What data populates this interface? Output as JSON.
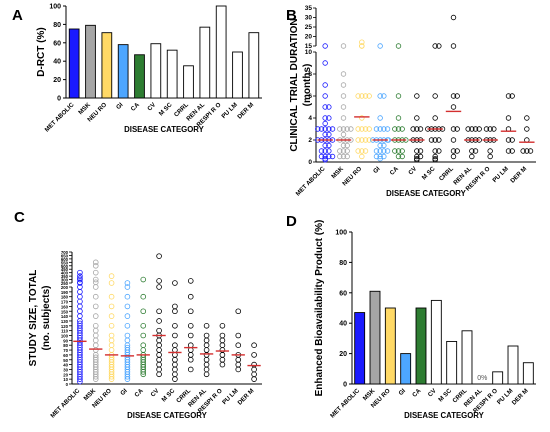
{
  "colors": {
    "metabolic": "#1a1aff",
    "msk": "#a6a6a6",
    "neuro": "#ffd966",
    "gi": "#4da6ff",
    "ca": "#2e7d32",
    "open": "#ffffff",
    "axis": "#000000",
    "median": "#d32f2f"
  },
  "chart_data": [
    {
      "id": "A",
      "panel_label": "A",
      "type": "bar",
      "categories": [
        "MET ABOLIC",
        "MSK",
        "NEU RO",
        "GI",
        "CA",
        "CV",
        "M SC",
        "CRRL",
        "REN AL",
        "RESPI R O",
        "PU LM",
        "DER M"
      ],
      "values": [
        75,
        79,
        71,
        58,
        47,
        59,
        52,
        35,
        77,
        100,
        50,
        71
      ],
      "fill_keys": [
        "metabolic",
        "msk",
        "neuro",
        "gi",
        "ca",
        "open",
        "open",
        "open",
        "open",
        "open",
        "open",
        "open"
      ],
      "ylabel": "D-RCT (%)",
      "xlabel": "DISEASE CATEGORY",
      "ylim": [
        0,
        100
      ],
      "yticks": [
        "0",
        "20",
        "40",
        "60",
        "80",
        "100"
      ],
      "grid": false
    },
    {
      "id": "B",
      "panel_label": "B",
      "type": "scatter",
      "categories": [
        "MET ABOLIC",
        "MSK",
        "NEU RO",
        "GI",
        "CA",
        "CV",
        "M SC",
        "CRRL",
        "REN AL",
        "RESPI R O",
        "PU LM",
        "DER M"
      ],
      "ylabel_lines": [
        "CLINICAL TRIAL DURATION",
        "(months)"
      ],
      "xlabel": "DISEASE CATEGORY",
      "ylim": [
        0,
        34
      ],
      "broken_axis": true,
      "yticks_lower": [
        "0",
        "2",
        "4",
        "6",
        "8",
        "10"
      ],
      "yticks_upper": [
        "15",
        "20",
        "25",
        "30",
        "35"
      ],
      "point_colors": [
        "metabolic",
        "msk",
        "neuro",
        "gi",
        "ca",
        "axis",
        "axis",
        "axis",
        "axis",
        "axis",
        "axis",
        "axis"
      ],
      "medians": [
        2.0,
        2.0,
        4.1,
        2.0,
        2.0,
        2.0,
        3.0,
        4.6,
        2.0,
        2.0,
        2.8,
        1.8
      ],
      "points": [
        [
          12,
          9,
          7,
          6,
          5,
          5,
          4,
          4,
          3.5,
          3,
          3,
          3,
          3,
          3,
          2.5,
          2.5,
          2,
          2,
          2,
          2,
          2,
          1.5,
          1.5,
          1,
          1,
          1,
          0.5,
          0.5,
          0.5,
          0.5,
          0.3,
          0.2
        ],
        [
          12,
          8,
          7,
          6,
          5,
          4,
          3,
          3,
          3,
          3,
          2.5,
          2,
          2,
          2,
          2,
          1.5,
          1.5,
          1,
          1,
          1,
          0.5,
          0.5,
          0.5
        ],
        [
          17,
          15,
          12,
          6,
          6,
          6,
          6,
          4,
          3,
          3,
          3,
          3,
          2,
          2,
          2,
          2,
          1,
          1,
          1,
          0.5
        ],
        [
          12,
          6,
          6,
          4,
          3,
          3,
          3,
          3,
          2,
          2,
          2,
          2,
          2,
          2,
          1.5,
          1.5,
          1,
          1,
          1,
          1,
          0.5,
          0.5,
          0.5,
          0.3
        ],
        [
          12,
          6,
          4,
          3,
          3,
          3,
          2,
          2,
          2,
          2,
          1,
          1,
          1,
          0.5,
          0.5
        ],
        [
          6,
          4,
          3,
          3,
          3,
          2,
          2,
          2,
          1,
          1,
          0.5,
          0.5,
          0.3,
          0.2
        ],
        [
          12,
          12,
          6,
          4,
          3,
          3,
          3,
          3,
          3,
          2,
          2,
          2,
          1,
          1,
          0.5,
          0.3,
          0.2
        ],
        [
          30,
          12,
          6,
          6,
          5,
          3,
          3,
          2,
          1,
          1,
          0.5
        ],
        [
          3,
          3,
          3,
          3,
          2,
          2,
          2,
          2,
          1,
          1,
          0.5
        ],
        [
          3,
          3,
          3,
          2,
          2,
          2,
          1,
          0.5
        ],
        [
          6,
          6,
          4,
          3,
          2,
          2,
          1,
          1
        ],
        [
          4,
          3,
          2,
          1,
          1,
          1
        ]
      ]
    },
    {
      "id": "C",
      "panel_label": "C",
      "type": "scatter",
      "categories": [
        "MET ABOLIC",
        "MSK",
        "NEU RO",
        "GI",
        "CA",
        "CV",
        "M SC",
        "CRRL",
        "REN AL",
        "RESPI R O",
        "PU LM",
        "DER M"
      ],
      "ylabel_lines": [
        "STUDY SIZE, TOTAL",
        "(no. subjects)"
      ],
      "xlabel": "DISEASE CATEGORY",
      "ylim": [
        0,
        700
      ],
      "broken_axis": true,
      "yticks_lower": [
        "0",
        "10",
        "20",
        "30",
        "40",
        "50",
        "60",
        "70",
        "80",
        "90",
        "100",
        "110",
        "120",
        "130",
        "140",
        "150",
        "160",
        "170",
        "180",
        "190",
        "200"
      ],
      "yticks_upper": [
        "250",
        "300",
        "350",
        "400",
        "450",
        "500",
        "550",
        "600",
        "650",
        "700"
      ],
      "point_colors": [
        "metabolic",
        "msk",
        "neuro",
        "gi",
        "ca",
        "axis",
        "axis",
        "axis",
        "axis",
        "axis",
        "axis",
        "axis"
      ],
      "medians": [
        88,
        72,
        60,
        58,
        60,
        100,
        65,
        75,
        62,
        68,
        60,
        38
      ],
      "points": [
        [
          400,
          350,
          320,
          300,
          260,
          250,
          200,
          190,
          180,
          170,
          160,
          150,
          140,
          130,
          125,
          120,
          115,
          110,
          105,
          100,
          95,
          90,
          85,
          80,
          75,
          70,
          65,
          60,
          55,
          50,
          45,
          40,
          35,
          30,
          25,
          20,
          15,
          10,
          5
        ],
        [
          550,
          500,
          400,
          300,
          260,
          200,
          180,
          160,
          140,
          120,
          110,
          100,
          90,
          80,
          70,
          60,
          55,
          50,
          45,
          40,
          35,
          30,
          25,
          20,
          15,
          10
        ],
        [
          350,
          250,
          180,
          160,
          140,
          120,
          100,
          90,
          80,
          70,
          60,
          55,
          50,
          45,
          40,
          35,
          30,
          25,
          20,
          15,
          10
        ],
        [
          250,
          200,
          180,
          160,
          140,
          120,
          100,
          90,
          80,
          75,
          70,
          65,
          60,
          55,
          50,
          45,
          40,
          35,
          30,
          25,
          20,
          15,
          10
        ],
        [
          300,
          180,
          150,
          120,
          100,
          80,
          70,
          60,
          55,
          50,
          45,
          40,
          35,
          30,
          25,
          20
        ],
        [
          640,
          280,
          200,
          150,
          130,
          110,
          100,
          90,
          80,
          70,
          60,
          50,
          40,
          30,
          20
        ],
        [
          250,
          160,
          150,
          120,
          100,
          80,
          70,
          60,
          50,
          40,
          30,
          20,
          10
        ],
        [
          280,
          180,
          150,
          120,
          100,
          80,
          70,
          60,
          50,
          30
        ],
        [
          120,
          100,
          90,
          80,
          70,
          60,
          50,
          40,
          30,
          20
        ],
        [
          120,
          100,
          90,
          80,
          70,
          60,
          50,
          40
        ],
        [
          150,
          100,
          80,
          60,
          50,
          40,
          30
        ],
        [
          80,
          60,
          40,
          30,
          20,
          10
        ]
      ]
    },
    {
      "id": "D",
      "panel_label": "D",
      "type": "bar",
      "categories": [
        "MET ABOLIC",
        "MSK",
        "NEU RO",
        "GI",
        "CA",
        "CV",
        "M SC",
        "CRRL",
        "REN AL",
        "RESPI R O",
        "PU LM",
        "DER M"
      ],
      "values": [
        47,
        61,
        50,
        20,
        50,
        55,
        28,
        35,
        0,
        8,
        25,
        14
      ],
      "fill_keys": [
        "metabolic",
        "msk",
        "neuro",
        "gi",
        "ca",
        "open",
        "open",
        "open",
        "open",
        "open",
        "open",
        "open"
      ],
      "ylabel": "Enhanced Bioavailability Product (%)",
      "xlabel": "DISEASE CATEGORY",
      "ylim": [
        0,
        100
      ],
      "yticks": [
        "0",
        "20",
        "40",
        "60",
        "80",
        "100"
      ],
      "annotation": "0%",
      "grid": false
    }
  ]
}
